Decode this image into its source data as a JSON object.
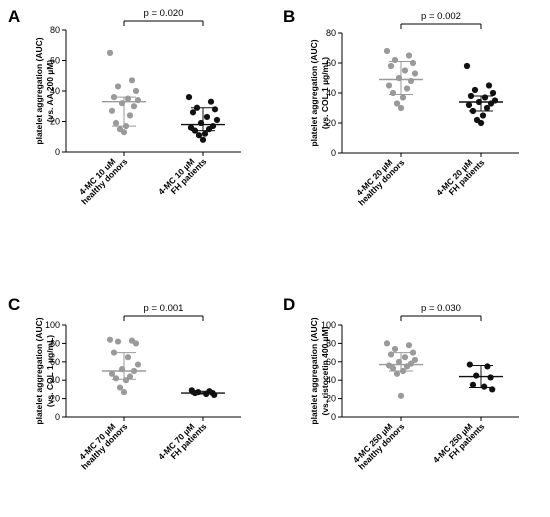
{
  "chart_data": [
    {
      "panel": "A",
      "type": "scatter",
      "ylabel_line1": "platelet aggregation (AUC)",
      "ylabel_line2": "(vs. AA 200 µM)",
      "ylim": [
        0,
        80
      ],
      "yticks": [
        "0",
        "20",
        "40",
        "60",
        "80"
      ],
      "pvalue": "p = 0.020",
      "series": [
        {
          "name": "4-MC 10 uM healthy donors",
          "label_lines": [
            "4-MC 10 uM",
            "healthy donors"
          ],
          "color": "#9a9a9a",
          "median": 33,
          "q1": 17,
          "q3": 36,
          "values": [
            65,
            47,
            43,
            40,
            36,
            35,
            34,
            32,
            30,
            27,
            24,
            19,
            17,
            15,
            13
          ]
        },
        {
          "name": "4-MC 10 µM FH patients",
          "label_lines": [
            "4-MC 10 µM",
            "FH patients"
          ],
          "color": "#111111",
          "median": 18,
          "q1": 14,
          "q3": 29,
          "values": [
            36,
            33,
            29,
            28,
            26,
            23,
            21,
            19,
            17,
            16,
            15,
            14,
            12,
            11,
            8
          ]
        }
      ]
    },
    {
      "panel": "B",
      "type": "scatter",
      "ylabel_line1": "platelet aggregation (AUC)",
      "ylabel_line2": "(vs. COL 1 µg/mL)",
      "ylim": [
        0,
        80
      ],
      "yticks": [
        "0",
        "20",
        "40",
        "60",
        "80"
      ],
      "pvalue": "p = 0.002",
      "series": [
        {
          "name": "4-MC 20 µM healthy donors",
          "label_lines": [
            "4-MC 20 µM",
            "healthy donors"
          ],
          "color": "#9a9a9a",
          "median": 49,
          "q1": 39,
          "q3": 61,
          "values": [
            68,
            65,
            62,
            60,
            58,
            55,
            53,
            50,
            48,
            45,
            43,
            40,
            37,
            33,
            30
          ]
        },
        {
          "name": "4-MC 20 µM FH patients",
          "label_lines": [
            "4-MC 20 µM",
            "FH patients"
          ],
          "color": "#111111",
          "median": 34,
          "q1": 28,
          "q3": 38,
          "values": [
            58,
            45,
            42,
            40,
            38,
            37,
            35,
            34,
            33,
            32,
            30,
            28,
            25,
            22,
            20
          ]
        }
      ]
    },
    {
      "panel": "C",
      "type": "scatter",
      "ylabel_line1": "platelet aggregation (AUC)",
      "ylabel_line2": "(vs. COL 1 µg/mL)",
      "ylim": [
        0,
        100
      ],
      "yticks": [
        "0",
        "20",
        "40",
        "60",
        "80",
        "100"
      ],
      "pvalue": "p = 0.001",
      "series": [
        {
          "name": "4-MC 70 µM healthy donors",
          "label_lines": [
            "4-MC 70 µM",
            "healthy donors"
          ],
          "color": "#9a9a9a",
          "median": 50,
          "q1": 41,
          "q3": 70,
          "values": [
            84,
            83,
            82,
            80,
            70,
            65,
            57,
            52,
            50,
            47,
            44,
            42,
            40,
            32,
            27
          ]
        },
        {
          "name": "4-MC 70 µM FH patients",
          "label_lines": [
            "4-MC 70 µM",
            "FH patients"
          ],
          "color": "#111111",
          "median": 26,
          "q1": 25,
          "q3": 28,
          "values": [
            29,
            28,
            27,
            26,
            26,
            25,
            24
          ]
        }
      ]
    },
    {
      "panel": "D",
      "type": "scatter",
      "ylabel_line1": "platelet aggregation (AUC)",
      "ylabel_line2": "(vs. ristocetin 400 µM)",
      "ylim": [
        0,
        100
      ],
      "yticks": [
        "0",
        "20",
        "40",
        "60",
        "80",
        "100"
      ],
      "pvalue": "p = 0.030",
      "series": [
        {
          "name": "4-MC 250 µM healthy donors",
          "label_lines": [
            "4-MC 250 µM",
            "healthy donors"
          ],
          "color": "#9a9a9a",
          "median": 57,
          "q1": 50,
          "q3": 70,
          "values": [
            80,
            78,
            74,
            70,
            68,
            65,
            62,
            60,
            58,
            56,
            55,
            53,
            50,
            47,
            23
          ]
        },
        {
          "name": "4-MC 250 µM FH patients",
          "label_lines": [
            "4-MC 250 µM",
            "FH patients"
          ],
          "color": "#111111",
          "median": 44,
          "q1": 32,
          "q3": 56,
          "values": [
            57,
            55,
            45,
            43,
            35,
            33,
            30
          ]
        }
      ]
    }
  ]
}
